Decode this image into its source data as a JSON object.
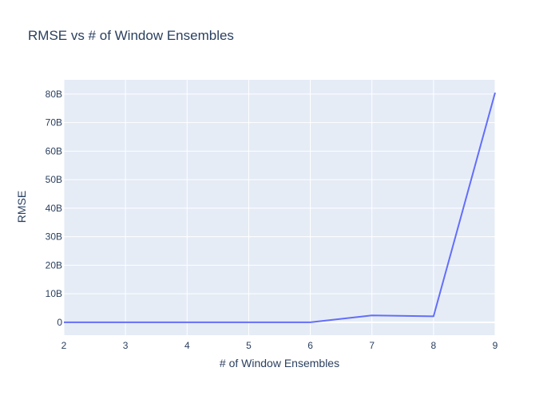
{
  "chart_data": {
    "type": "line",
    "title": "RMSE vs # of Window Ensembles",
    "xlabel": "# of Window Ensembles",
    "ylabel": "RMSE",
    "x": [
      2,
      3,
      4,
      5,
      6,
      7,
      8,
      9
    ],
    "series": [
      {
        "values": [
          0,
          0,
          0,
          0,
          0,
          2400000000,
          2100000000,
          80500000000
        ]
      }
    ],
    "xlim": [
      2,
      9
    ],
    "ylim": [
      -4500000000,
      85000000000
    ],
    "xticks": [
      2,
      3,
      4,
      5,
      6,
      7,
      8,
      9
    ],
    "xtick_labels": [
      "2",
      "3",
      "4",
      "5",
      "6",
      "7",
      "8",
      "9"
    ],
    "yticks": [
      0,
      10000000000,
      20000000000,
      30000000000,
      40000000000,
      50000000000,
      60000000000,
      70000000000,
      80000000000
    ],
    "ytick_labels": [
      "0",
      "10B",
      "20B",
      "30B",
      "40B",
      "50B",
      "60B",
      "70B",
      "80B"
    ],
    "grid": true,
    "colors": {
      "plot_bg": "#E5ECF6",
      "grid": "#ffffff",
      "line": "#636EFA",
      "text": "#2a3f5f"
    }
  }
}
